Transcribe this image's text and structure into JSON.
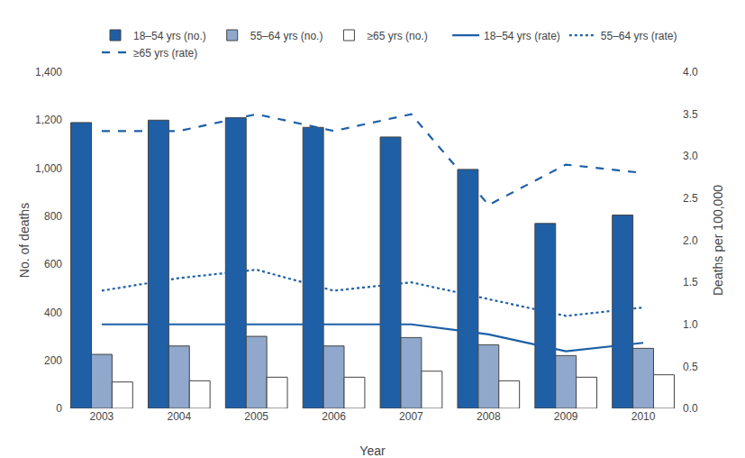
{
  "chart_data": {
    "type": "bar",
    "categories": [
      "2003",
      "2004",
      "2005",
      "2006",
      "2007",
      "2008",
      "2009",
      "2010"
    ],
    "series": [
      {
        "name": "18–54 yrs (no.)",
        "type": "bar",
        "color": "#1F5FA6",
        "values": [
          1190,
          1200,
          1210,
          1170,
          1130,
          995,
          770,
          805
        ]
      },
      {
        "name": "55–64 yrs (no.)",
        "type": "bar",
        "color": "#8FA8CC",
        "values": [
          225,
          260,
          300,
          260,
          295,
          265,
          220,
          250
        ]
      },
      {
        "name": "≥65 yrs (no.)",
        "type": "bar",
        "color": "#FFFFFF",
        "values": [
          110,
          115,
          130,
          130,
          155,
          115,
          130,
          140
        ]
      },
      {
        "name": "18–54 yrs (rate)",
        "type": "line",
        "axis": "y2",
        "color": "#1F5FA6",
        "line_style": "solid",
        "values": [
          1.0,
          1.0,
          1.0,
          1.0,
          1.0,
          0.88,
          0.68,
          0.78
        ]
      },
      {
        "name": "55–64 yrs (rate)",
        "type": "line",
        "axis": "y2",
        "color": "#1F5FA6",
        "line_style": "dotted",
        "values": [
          1.4,
          1.55,
          1.65,
          1.4,
          1.5,
          1.3,
          1.1,
          1.2
        ]
      },
      {
        "name": "≥65 yrs (rate)",
        "type": "line",
        "axis": "y2",
        "color": "#1F5FA6",
        "line_style": "dashed",
        "values": [
          3.3,
          3.3,
          3.5,
          3.3,
          3.5,
          2.42,
          2.9,
          2.8
        ]
      }
    ],
    "xlabel": "Year",
    "ylabel": "No. of deaths",
    "y2label": "Deaths per 100,000",
    "ylim": [
      0,
      1400
    ],
    "yticks": [
      0,
      200,
      400,
      600,
      800,
      {
        "value": 1000,
        "label": "1,000"
      },
      {
        "value": 1200,
        "label": "1,200"
      },
      {
        "value": 1400,
        "label": "1,400"
      }
    ],
    "y2lim": [
      0.0,
      4.0
    ],
    "y2ticks": [
      {
        "value": 0.0,
        "label": "0.0"
      },
      0.5,
      {
        "value": 1.0,
        "label": "1.0"
      },
      1.5,
      {
        "value": 2.0,
        "label": "2.0"
      },
      2.5,
      {
        "value": 3.0,
        "label": "3.0"
      },
      3.5,
      {
        "value": 4.0,
        "label": "4.0"
      }
    ],
    "grid": false,
    "legend": "upper right"
  }
}
